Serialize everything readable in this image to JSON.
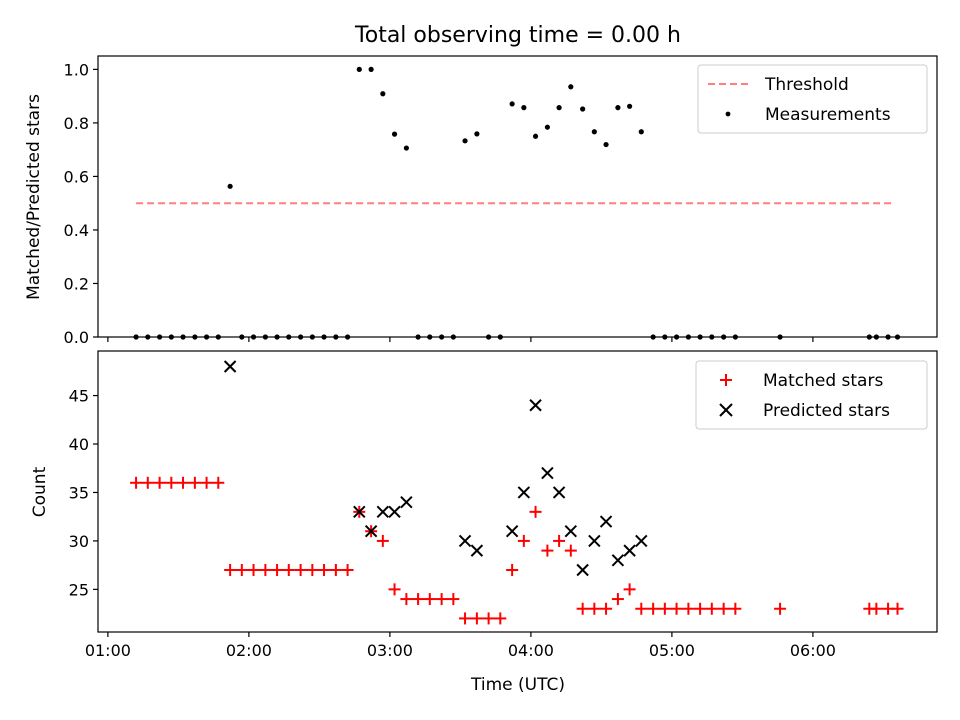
{
  "title": "Total observing time = 0.00 h",
  "chart_data": [
    {
      "type": "scatter",
      "ylabel": "Matched/Predicted stars",
      "xlim": [
        0.93,
        6.88
      ],
      "ylim": [
        0,
        1.05
      ],
      "yticks": [
        0.0,
        0.2,
        0.4,
        0.6,
        0.8,
        1.0
      ],
      "ytick_labels": [
        "0.0",
        "0.2",
        "0.4",
        "0.6",
        "0.8",
        "1.0"
      ],
      "legend_position": "top-right",
      "threshold": {
        "name": "Threshold",
        "y": 0.5,
        "x": [
          1.2,
          6.58
        ],
        "color": "#ff7f7f",
        "style": "dashed"
      },
      "series": [
        {
          "name": "Measurements",
          "marker": "dot",
          "color": "#000000",
          "x": [
            1.2,
            1.283,
            1.367,
            1.45,
            1.533,
            1.617,
            1.7,
            1.783,
            1.867,
            1.95,
            2.033,
            2.117,
            2.2,
            2.283,
            2.367,
            2.45,
            2.533,
            2.617,
            2.7,
            2.783,
            2.867,
            2.95,
            3.033,
            3.117,
            3.2,
            3.283,
            3.367,
            3.45,
            3.533,
            3.617,
            3.7,
            3.783,
            3.867,
            3.95,
            4.033,
            4.117,
            4.2,
            4.283,
            4.367,
            4.45,
            4.533,
            4.617,
            4.7,
            4.783,
            4.867,
            4.95,
            5.033,
            5.117,
            5.2,
            5.283,
            5.367,
            5.45,
            5.767,
            6.4,
            6.45,
            6.533,
            6.6
          ],
          "y": [
            0,
            0,
            0,
            0,
            0,
            0,
            0,
            0,
            0.563,
            0,
            0,
            0,
            0,
            0,
            0,
            0,
            0,
            0,
            0,
            1.0,
            1.0,
            0.909,
            0.758,
            0.706,
            0,
            0,
            0,
            0,
            0.733,
            0.759,
            0,
            0,
            0.871,
            0.857,
            0.75,
            0.784,
            0.857,
            0.935,
            0.852,
            0.767,
            0.719,
            0.857,
            0.862,
            0.767,
            0,
            0,
            0,
            0,
            0,
            0,
            0,
            0,
            0,
            0,
            0,
            0,
            0
          ]
        }
      ]
    },
    {
      "type": "scatter",
      "xlabel": "Time (UTC)",
      "ylabel": "Count",
      "xlim": [
        0.93,
        6.88
      ],
      "ylim": [
        20.6,
        49.6
      ],
      "xticks": [
        1,
        2,
        3,
        4,
        5,
        6
      ],
      "xtick_labels": [
        "01:00",
        "02:00",
        "03:00",
        "04:00",
        "05:00",
        "06:00"
      ],
      "yticks": [
        25,
        30,
        35,
        40,
        45
      ],
      "ytick_labels": [
        "25",
        "30",
        "35",
        "40",
        "45"
      ],
      "legend_position": "top-right",
      "series": [
        {
          "name": "Matched stars",
          "marker": "plus",
          "color": "#ff0000",
          "x": [
            1.2,
            1.283,
            1.367,
            1.45,
            1.533,
            1.617,
            1.7,
            1.783,
            1.867,
            1.95,
            2.033,
            2.117,
            2.2,
            2.283,
            2.367,
            2.45,
            2.533,
            2.617,
            2.7,
            2.783,
            2.867,
            2.95,
            3.033,
            3.117,
            3.2,
            3.283,
            3.367,
            3.45,
            3.533,
            3.617,
            3.7,
            3.783,
            3.867,
            3.95,
            4.033,
            4.117,
            4.2,
            4.283,
            4.367,
            4.45,
            4.533,
            4.617,
            4.7,
            4.783,
            4.867,
            4.95,
            5.033,
            5.117,
            5.2,
            5.283,
            5.367,
            5.45,
            5.767,
            6.4,
            6.45,
            6.533,
            6.6
          ],
          "y": [
            36,
            36,
            36,
            36,
            36,
            36,
            36,
            36,
            27,
            27,
            27,
            27,
            27,
            27,
            27,
            27,
            27,
            27,
            27,
            33,
            31,
            30,
            25,
            24,
            24,
            24,
            24,
            24,
            22,
            22,
            22,
            22,
            27,
            30,
            33,
            29,
            30,
            29,
            23,
            23,
            23,
            24,
            25,
            23,
            23,
            23,
            23,
            23,
            23,
            23,
            23,
            23,
            23,
            23,
            23,
            23,
            23
          ]
        },
        {
          "name": "Predicted stars",
          "marker": "x",
          "color": "#000000",
          "x": [
            1.867,
            2.783,
            2.867,
            2.95,
            3.033,
            3.117,
            3.533,
            3.617,
            3.867,
            3.95,
            4.033,
            4.117,
            4.2,
            4.283,
            4.367,
            4.45,
            4.533,
            4.617,
            4.7,
            4.783
          ],
          "y": [
            48,
            33,
            31,
            33,
            33,
            34,
            30,
            29,
            31,
            35,
            44,
            37,
            35,
            31,
            27,
            30,
            32,
            28,
            29,
            30
          ]
        }
      ]
    }
  ]
}
